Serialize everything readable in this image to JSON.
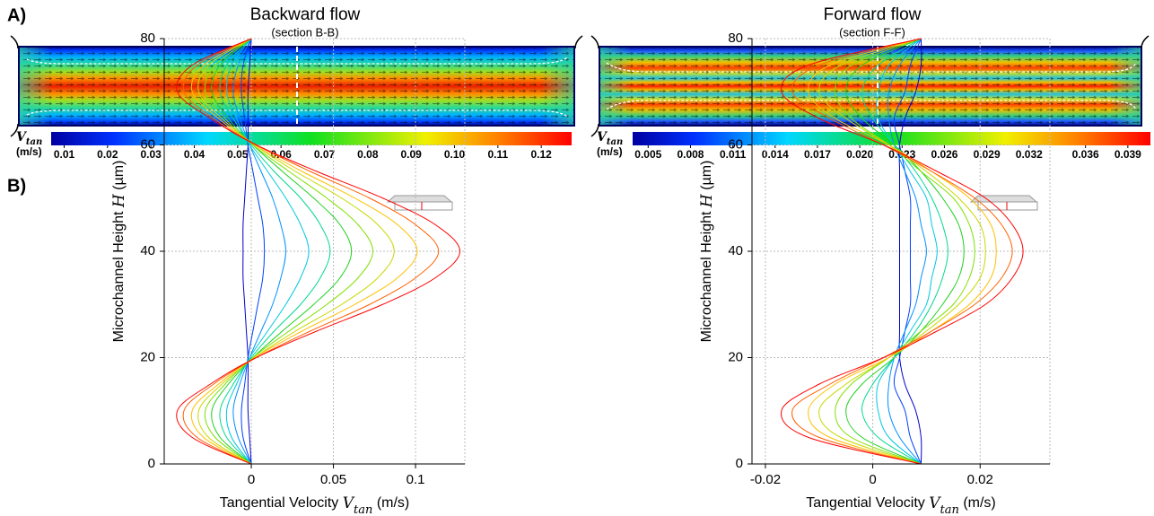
{
  "panel_labels": [
    "A)",
    "B)"
  ],
  "flow_maps": [
    {
      "title": "Backward flow",
      "section": "(section B-B)",
      "colorbar": {
        "label": [
          "V",
          "tan"
        ],
        "unit": "(m/s)",
        "clim": [
          0.007,
          0.127
        ],
        "ticks": [
          0.01,
          0.02,
          0.03,
          0.04,
          0.05,
          0.06,
          0.07,
          0.08,
          0.09,
          {
            "value": 0.1,
            "label": "0.10"
          },
          0.11,
          0.12
        ]
      }
    },
    {
      "title": "Forward flow",
      "section": "(section F-F)",
      "colorbar": {
        "label": [
          "V",
          "tan"
        ],
        "unit": "(m/s)",
        "clim": [
          0.0039,
          0.0406
        ],
        "ticks": [
          0.005,
          0.008,
          0.011,
          0.014,
          0.017,
          {
            "value": 0.02,
            "label": "0.020"
          },
          0.023,
          0.026,
          0.029,
          0.032,
          0.036,
          0.039
        ]
      }
    }
  ],
  "chart_data": [
    {
      "type": "line",
      "xlabel": [
        "Tangential Velocity ",
        "V",
        "tan",
        " (m/s)"
      ],
      "ylabel": [
        "Microchannel Height ",
        "H",
        " (µm)"
      ],
      "y": [
        0,
        5,
        10,
        15,
        20,
        25,
        30,
        35,
        40,
        45,
        50,
        55,
        60,
        65,
        70,
        75,
        80
      ],
      "xlim": [
        -0.053,
        0.13
      ],
      "xticks": [
        0,
        0.05,
        0.1
      ],
      "ylim": [
        0,
        80
      ],
      "yticks": [
        0,
        20,
        40,
        60,
        80
      ],
      "grid": true,
      "series": [
        {
          "color": "#0000cc",
          "values": [
            0,
            -0.001,
            -0.002,
            -0.002,
            -0.002,
            -0.003,
            -0.004,
            -0.005,
            -0.005,
            -0.005,
            -0.004,
            -0.003,
            -0.002,
            -0.002,
            -0.002,
            -0.001,
            0
          ]
        },
        {
          "color": "#0040ff",
          "values": [
            0,
            -0.005,
            -0.006,
            -0.004,
            -0.002,
            0.001,
            0.004,
            0.007,
            0.008,
            0.007,
            0.004,
            0.001,
            -0.002,
            -0.004,
            -0.006,
            -0.005,
            0
          ]
        },
        {
          "color": "#0090ff",
          "values": [
            0,
            -0.008,
            -0.011,
            -0.007,
            -0.001,
            0.006,
            0.013,
            0.018,
            0.021,
            0.018,
            0.013,
            0.006,
            -0.001,
            -0.007,
            -0.011,
            -0.008,
            0
          ]
        },
        {
          "color": "#00c8e0",
          "values": [
            0,
            -0.012,
            -0.015,
            -0.009,
            -0.001,
            0.01,
            0.021,
            0.03,
            0.035,
            0.03,
            0.021,
            0.01,
            -0.001,
            -0.009,
            -0.015,
            -0.012,
            0
          ]
        },
        {
          "color": "#00d890",
          "values": [
            0,
            -0.015,
            -0.019,
            -0.011,
            0,
            0.014,
            0.03,
            0.042,
            0.048,
            0.042,
            0.03,
            0.014,
            0,
            -0.011,
            -0.019,
            -0.015,
            0
          ]
        },
        {
          "color": "#20d020",
          "values": [
            0,
            -0.019,
            -0.024,
            -0.014,
            0.001,
            0.019,
            0.038,
            0.054,
            0.061,
            0.054,
            0.038,
            0.019,
            0.001,
            -0.014,
            -0.024,
            -0.019,
            0
          ]
        },
        {
          "color": "#80e000",
          "values": [
            0,
            -0.022,
            -0.028,
            -0.016,
            0.001,
            0.023,
            0.046,
            0.065,
            0.074,
            0.065,
            0.046,
            0.023,
            0.001,
            -0.016,
            -0.028,
            -0.022,
            0
          ]
        },
        {
          "color": "#c8d800",
          "values": [
            0,
            -0.026,
            -0.032,
            -0.018,
            0.002,
            0.027,
            0.055,
            0.077,
            0.087,
            0.077,
            0.055,
            0.027,
            0.002,
            -0.018,
            -0.032,
            -0.026,
            0
          ]
        },
        {
          "color": "#ffc000",
          "values": [
            0,
            -0.029,
            -0.036,
            -0.02,
            0.002,
            0.031,
            0.063,
            0.089,
            0.101,
            0.089,
            0.063,
            0.031,
            0.002,
            -0.02,
            -0.036,
            -0.029,
            0
          ]
        },
        {
          "color": "#ff6000",
          "values": [
            0,
            -0.033,
            -0.041,
            -0.023,
            0.003,
            0.036,
            0.072,
            0.1,
            0.114,
            0.1,
            0.072,
            0.036,
            0.003,
            -0.023,
            -0.041,
            -0.033,
            0
          ]
        },
        {
          "color": "#ff0000",
          "values": [
            0,
            -0.036,
            -0.045,
            -0.025,
            0.003,
            0.04,
            0.08,
            0.112,
            0.127,
            0.112,
            0.08,
            0.04,
            0.003,
            -0.025,
            -0.045,
            -0.036,
            0
          ]
        }
      ]
    },
    {
      "type": "line",
      "xlabel": [
        "Tangential Velocity ",
        "V",
        "tan",
        " (m/s)"
      ],
      "ylabel": [
        "Microchannel Height ",
        "H",
        " (µm)"
      ],
      "y": [
        0,
        5,
        10,
        15,
        20,
        25,
        30,
        35,
        40,
        45,
        50,
        55,
        60,
        65,
        70,
        75,
        80
      ],
      "xlim": [
        -0.0225,
        0.033
      ],
      "xticks": [
        -0.02,
        0,
        0.02
      ],
      "ylim": [
        0,
        80
      ],
      "yticks": [
        0,
        20,
        40,
        60,
        80
      ],
      "grid": true,
      "series": [
        {
          "color": "#0000cc",
          "values": [
            0.009,
            0.009,
            0.008,
            0.006,
            0.005,
            0.005,
            0.005,
            0.005,
            0.005,
            0.005,
            0.005,
            0.005,
            0.005,
            0.006,
            0.008,
            0.009,
            0.009
          ]
        },
        {
          "color": "#0040ff",
          "values": [
            0.009,
            0.007,
            0.006,
            0.004,
            0.005,
            0.006,
            0.007,
            0.007,
            0.007,
            0.007,
            0.007,
            0.006,
            0.005,
            0.004,
            0.006,
            0.007,
            0.009
          ]
        },
        {
          "color": "#0090ff",
          "values": [
            0.009,
            0.005,
            0.003,
            0.003,
            0.004,
            0.006,
            0.008,
            0.009,
            0.01,
            0.009,
            0.008,
            0.006,
            0.004,
            0.003,
            0.003,
            0.005,
            0.009
          ]
        },
        {
          "color": "#00c8e0",
          "values": [
            0.009,
            0.003,
            0.001,
            0.001,
            0.004,
            0.007,
            0.01,
            0.011,
            0.012,
            0.011,
            0.01,
            0.007,
            0.004,
            0.001,
            0.001,
            0.003,
            0.009
          ]
        },
        {
          "color": "#00d890",
          "values": [
            0.009,
            0.001,
            -0.002,
            0,
            0.004,
            0.008,
            0.011,
            0.013,
            0.014,
            0.013,
            0.011,
            0.008,
            0.004,
            0,
            -0.002,
            0.001,
            0.009
          ]
        },
        {
          "color": "#20d020",
          "values": [
            0.009,
            -0.002,
            -0.005,
            -0.002,
            0.004,
            0.009,
            0.013,
            0.016,
            0.017,
            0.016,
            0.013,
            0.009,
            0.004,
            -0.002,
            -0.005,
            -0.002,
            0.009
          ]
        },
        {
          "color": "#80e000",
          "values": [
            0.009,
            -0.004,
            -0.007,
            -0.004,
            0.003,
            0.009,
            0.015,
            0.018,
            0.019,
            0.018,
            0.015,
            0.009,
            0.003,
            -0.004,
            -0.007,
            -0.004,
            0.009
          ]
        },
        {
          "color": "#c8d800",
          "values": [
            0.009,
            -0.006,
            -0.01,
            -0.005,
            0.003,
            0.01,
            0.016,
            0.02,
            0.021,
            0.02,
            0.016,
            0.01,
            0.003,
            -0.005,
            -0.01,
            -0.006,
            0.009
          ]
        },
        {
          "color": "#ffc000",
          "values": [
            0.009,
            -0.008,
            -0.012,
            -0.007,
            0.003,
            0.011,
            0.018,
            0.022,
            0.023,
            0.022,
            0.018,
            0.011,
            0.003,
            -0.007,
            -0.012,
            -0.008,
            0.009
          ]
        },
        {
          "color": "#ff6000",
          "values": [
            0.009,
            -0.01,
            -0.015,
            -0.008,
            0.002,
            0.011,
            0.019,
            0.024,
            0.026,
            0.024,
            0.019,
            0.011,
            0.002,
            -0.008,
            -0.015,
            -0.01,
            0.009
          ]
        },
        {
          "color": "#ff0000",
          "values": [
            0.009,
            -0.012,
            -0.017,
            -0.01,
            0.002,
            0.012,
            0.021,
            0.026,
            0.028,
            0.026,
            0.021,
            0.012,
            0.002,
            -0.01,
            -0.017,
            -0.012,
            0.009
          ]
        }
      ]
    }
  ]
}
